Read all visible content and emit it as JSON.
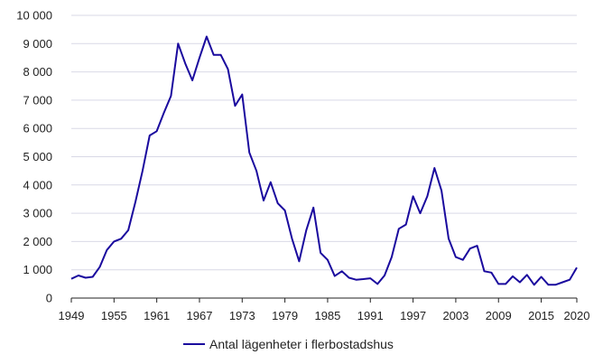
{
  "chart_data": {
    "type": "line",
    "y_ticks": [
      {
        "value": 0,
        "label": "0"
      },
      {
        "value": 1000,
        "label": "1 000"
      },
      {
        "value": 2000,
        "label": "2 000"
      },
      {
        "value": 3000,
        "label": "3 000"
      },
      {
        "value": 4000,
        "label": "4 000"
      },
      {
        "value": 5000,
        "label": "5 000"
      },
      {
        "value": 6000,
        "label": "6 000"
      },
      {
        "value": 7000,
        "label": "7 000"
      },
      {
        "value": 8000,
        "label": "8 000"
      },
      {
        "value": 9000,
        "label": "9 000"
      },
      {
        "value": 10000,
        "label": "10 000"
      }
    ],
    "x_ticks": [
      1949,
      1955,
      1961,
      1967,
      1973,
      1979,
      1985,
      1991,
      1997,
      2003,
      2009,
      2015,
      2020
    ],
    "xlim": [
      1949,
      2020
    ],
    "ylim": [
      0,
      10000
    ],
    "grid": "horizontal",
    "legend_position": "bottom",
    "colors": {
      "series": "#1a0a9e",
      "grid": "#d9d9e6",
      "axis": "#222222"
    },
    "series": [
      {
        "name": "Antal lägenheter i flerbostadshus",
        "x": [
          1949,
          1950,
          1951,
          1952,
          1953,
          1954,
          1955,
          1956,
          1957,
          1958,
          1959,
          1960,
          1961,
          1962,
          1963,
          1964,
          1965,
          1966,
          1967,
          1968,
          1969,
          1970,
          1971,
          1972,
          1973,
          1974,
          1975,
          1976,
          1977,
          1978,
          1979,
          1980,
          1981,
          1982,
          1983,
          1984,
          1985,
          1986,
          1987,
          1988,
          1989,
          1990,
          1991,
          1992,
          1993,
          1994,
          1995,
          1996,
          1997,
          1998,
          1999,
          2000,
          2001,
          2002,
          2003,
          2004,
          2005,
          2006,
          2007,
          2008,
          2009,
          2010,
          2011,
          2012,
          2013,
          2014,
          2015,
          2016,
          2017,
          2018,
          2019,
          2020
        ],
        "values": [
          680,
          800,
          720,
          750,
          1100,
          1700,
          2000,
          2100,
          2400,
          3400,
          4500,
          5750,
          5900,
          6550,
          7150,
          9000,
          8300,
          7700,
          8500,
          9250,
          8600,
          8600,
          8100,
          6800,
          7200,
          5150,
          4500,
          3450,
          4100,
          3350,
          3100,
          2100,
          1300,
          2400,
          3200,
          1600,
          1350,
          780,
          950,
          720,
          650,
          670,
          700,
          500,
          800,
          1450,
          2450,
          2600,
          3600,
          3000,
          3600,
          4600,
          3800,
          2100,
          1450,
          1350,
          1750,
          1850,
          950,
          900,
          500,
          500,
          770,
          560,
          820,
          470,
          750,
          470,
          470,
          560,
          650,
          1080
        ]
      }
    ]
  }
}
